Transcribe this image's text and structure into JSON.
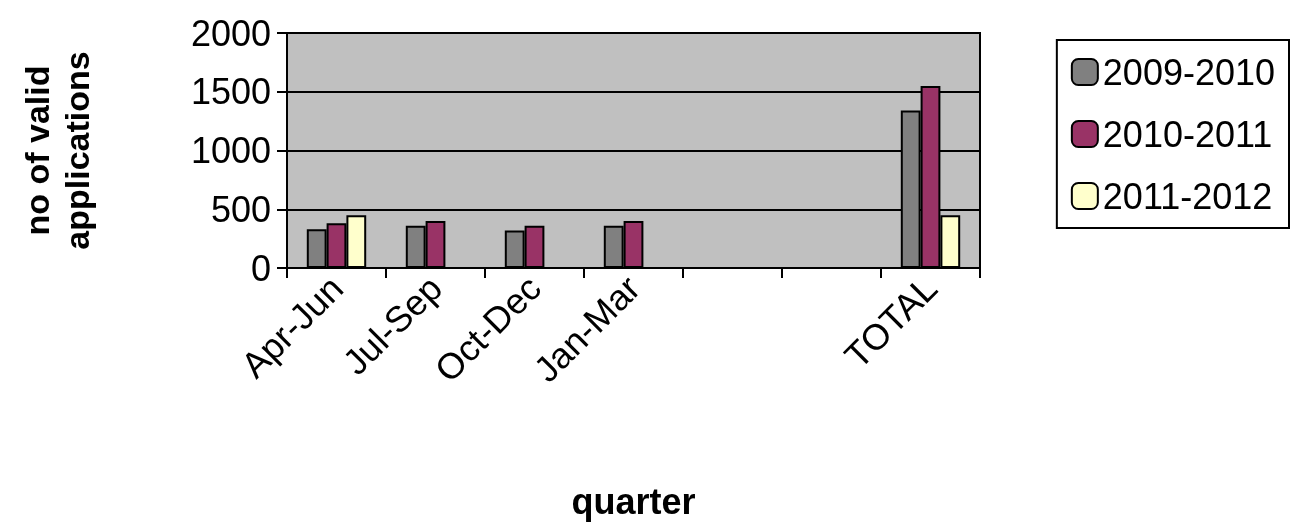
{
  "chart_data": {
    "type": "bar",
    "xlabel": "quarter",
    "ylabel": "no of valid applications",
    "categories": [
      "Apr-Jun",
      "Jul-Sep",
      "Oct-Dec",
      "Jan-Mar",
      null,
      null,
      "TOTAL"
    ],
    "series": [
      {
        "name": "2009-2010",
        "color": "#808080",
        "values": [
          330,
          360,
          320,
          360,
          null,
          null,
          1340
        ]
      },
      {
        "name": "2010-2011",
        "color": "#993366",
        "values": [
          380,
          400,
          360,
          400,
          null,
          null,
          1550
        ]
      },
      {
        "name": "2011-2012",
        "color": "#ffffcc",
        "values": [
          450,
          null,
          null,
          null,
          null,
          null,
          450
        ]
      }
    ],
    "ylim": [
      0,
      2000
    ],
    "yticks": [
      0,
      500,
      1000,
      1500,
      2000
    ],
    "grid": "y",
    "legend": "right"
  }
}
